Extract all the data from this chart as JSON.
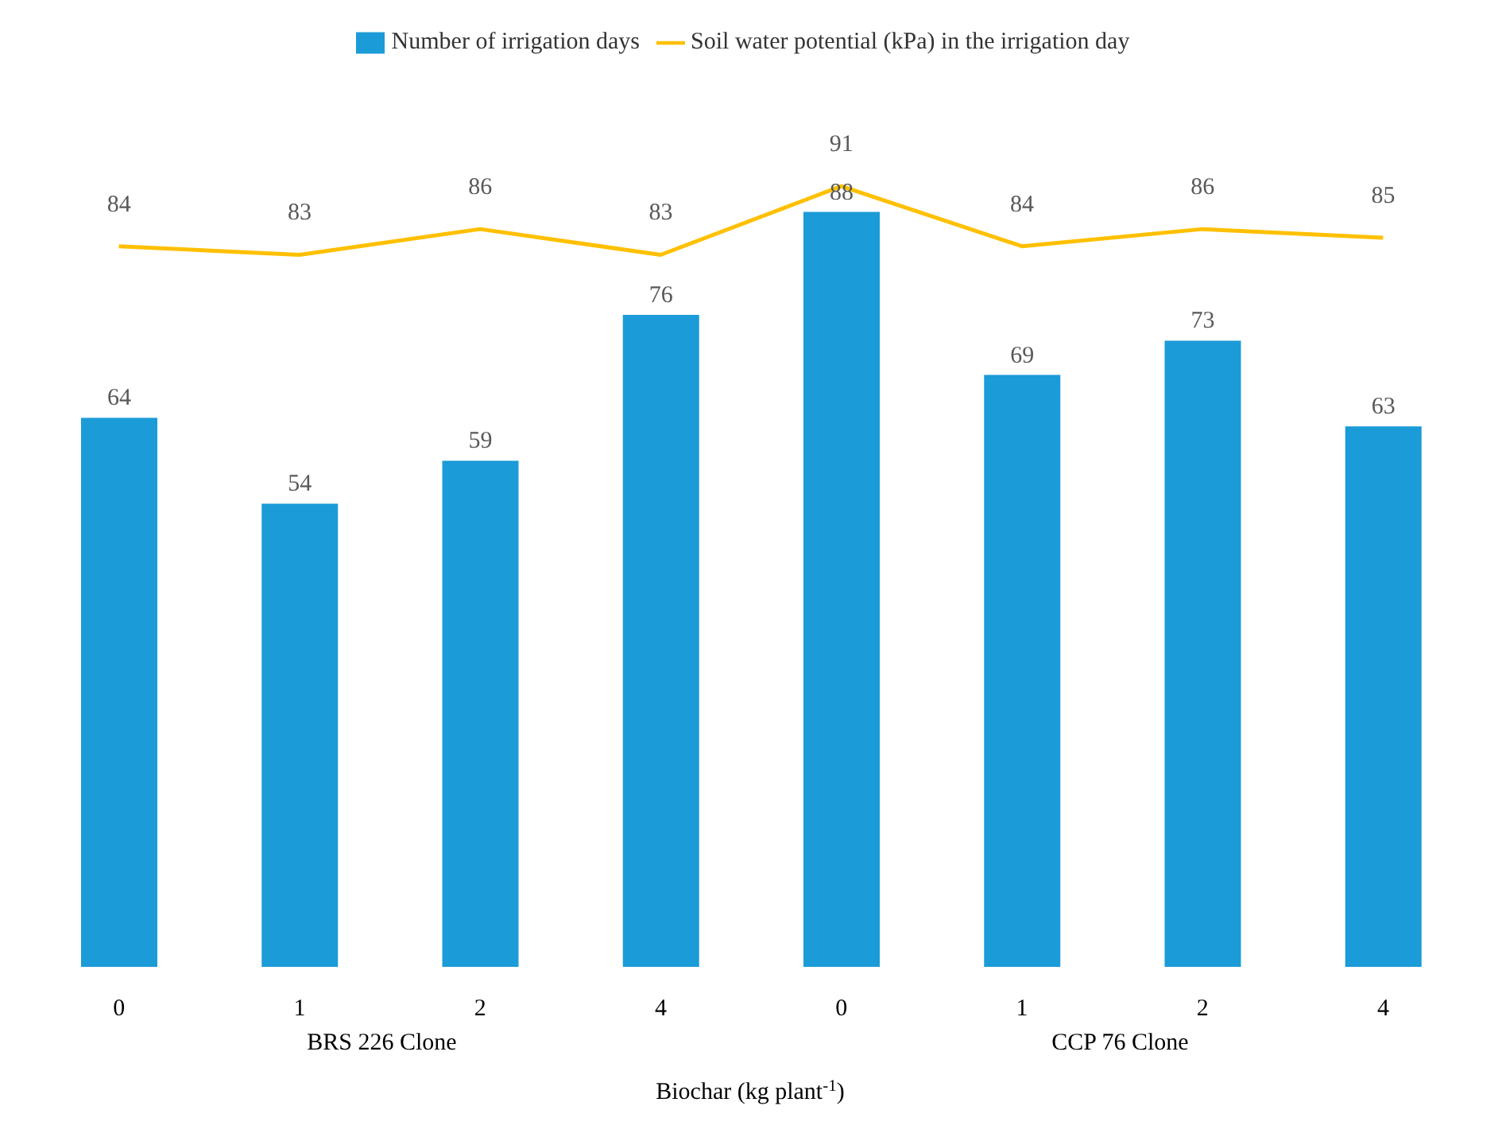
{
  "chart_data": {
    "type": "bar",
    "xlabel": "Biochar  (kg plant$^{-1}$)",
    "categories": [
      "0",
      "1",
      "2",
      "4",
      "0",
      "1",
      "2",
      "4"
    ],
    "series": [
      {
        "name": "Number of irrigation days",
        "color": "#1b9bd7",
        "values": [
          64,
          54,
          59,
          76,
          88,
          69,
          73,
          63
        ]
      },
      {
        "name": "Soil water potential  (kPa) in the irrigation day",
        "type": "line",
        "color": "#ffc000",
        "values": [
          84,
          83,
          86,
          83,
          91,
          84,
          86,
          85
        ]
      }
    ],
    "annotations": [
      "BRS 226 Clone",
      "CCP 76 Clone"
    ],
    "tick_labels": "x",
    "data_labels": true,
    "legend": "top",
    "marker": "none",
    "line_style": "solid"
  }
}
